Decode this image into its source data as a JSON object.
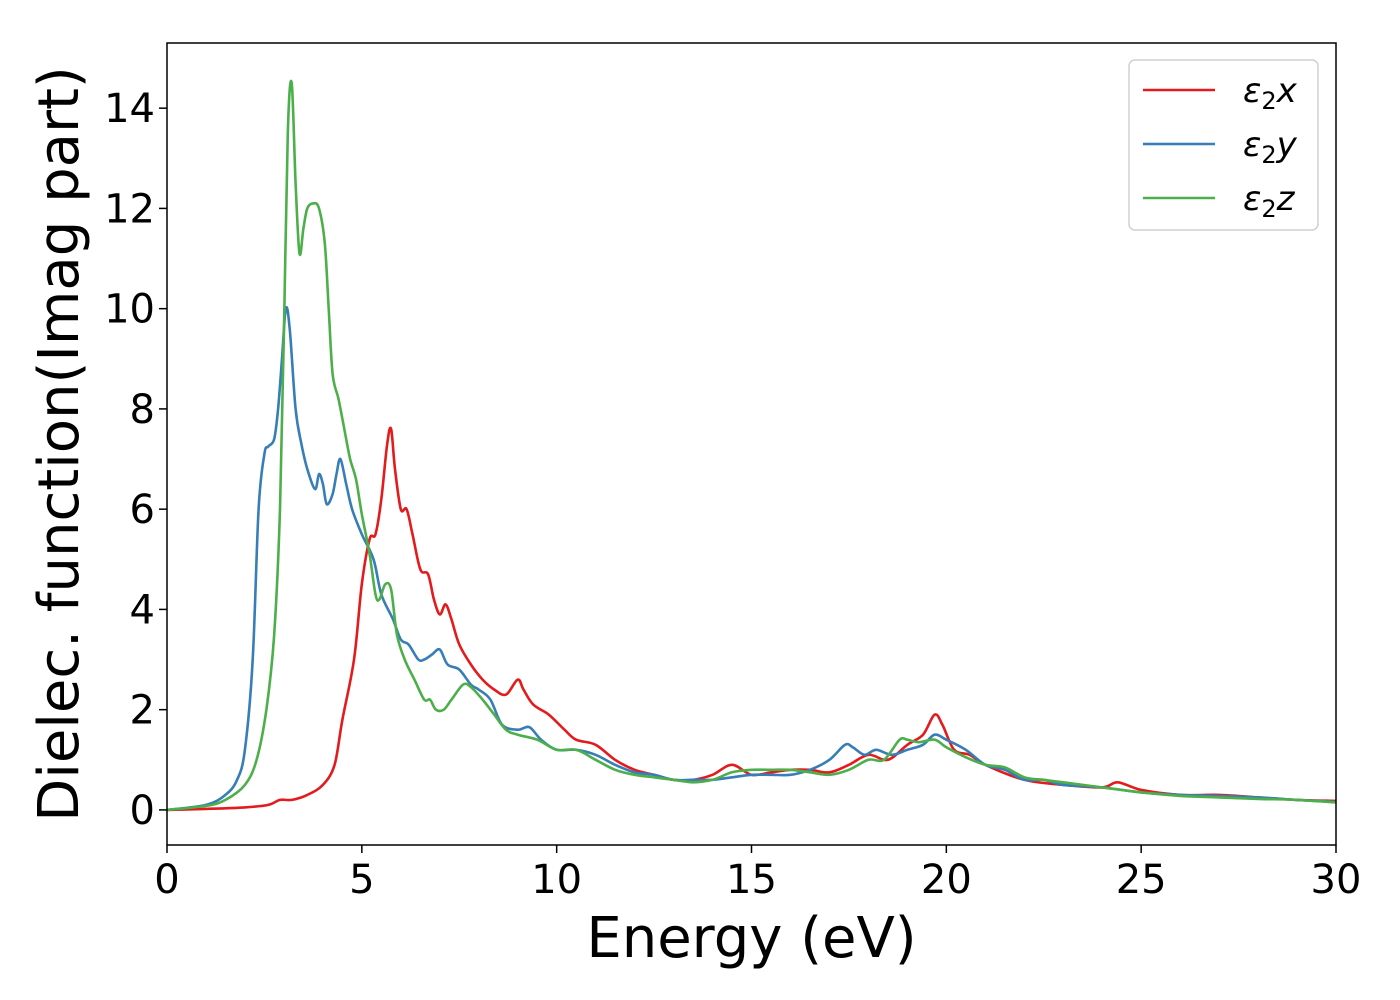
{
  "chart_data": {
    "type": "line",
    "title": "",
    "xlabel": "Energy (eV)",
    "ylabel": "Dielec. function(Imag part)",
    "xlim": [
      0,
      30
    ],
    "ylim": [
      -0.7,
      15.3
    ],
    "xticks": [
      0,
      5,
      10,
      15,
      20,
      25,
      30
    ],
    "yticks": [
      0,
      2,
      4,
      6,
      8,
      10,
      12,
      14
    ],
    "grid": false,
    "legend_position": "top-right",
    "series": [
      {
        "name": "ε2x",
        "legend": {
          "base": "ε",
          "sub": "2",
          "tail": "x"
        },
        "color": "#e41a1c",
        "x": [
          0,
          1,
          2,
          2.6,
          2.9,
          3.2,
          3.6,
          4.0,
          4.3,
          4.5,
          4.8,
          5.0,
          5.2,
          5.35,
          5.5,
          5.65,
          5.75,
          5.85,
          6.0,
          6.15,
          6.3,
          6.5,
          6.7,
          6.85,
          7.0,
          7.15,
          7.3,
          7.5,
          7.8,
          8.1,
          8.4,
          8.7,
          9.0,
          9.15,
          9.4,
          9.8,
          10.2,
          10.5,
          11.0,
          11.5,
          12.0,
          12.5,
          13.0,
          13.5,
          14.0,
          14.5,
          15.0,
          15.5,
          16.0,
          16.5,
          17.0,
          17.5,
          18.0,
          18.5,
          19.0,
          19.4,
          19.7,
          19.9,
          20.2,
          20.6,
          21.0,
          22.0,
          23.0,
          24.0,
          24.4,
          25.0,
          26.0,
          27.0,
          28.0,
          29.0,
          30.0
        ],
        "values": [
          0.0,
          0.02,
          0.05,
          0.1,
          0.2,
          0.2,
          0.3,
          0.5,
          0.9,
          1.8,
          3.0,
          4.5,
          5.4,
          5.5,
          6.2,
          7.3,
          7.6,
          6.8,
          6.0,
          6.0,
          5.5,
          4.8,
          4.7,
          4.2,
          3.9,
          4.1,
          3.8,
          3.3,
          2.9,
          2.6,
          2.4,
          2.3,
          2.6,
          2.4,
          2.1,
          1.9,
          1.6,
          1.4,
          1.3,
          1.0,
          0.8,
          0.7,
          0.6,
          0.6,
          0.7,
          0.9,
          0.7,
          0.75,
          0.8,
          0.8,
          0.75,
          0.9,
          1.1,
          1.0,
          1.3,
          1.5,
          1.9,
          1.7,
          1.2,
          1.1,
          0.9,
          0.6,
          0.5,
          0.45,
          0.55,
          0.4,
          0.3,
          0.3,
          0.25,
          0.2,
          0.18
        ]
      },
      {
        "name": "ε2y",
        "legend": {
          "base": "ε",
          "sub": "2",
          "tail": "y"
        },
        "color": "#377eb8",
        "x": [
          0,
          1,
          1.5,
          1.8,
          2.0,
          2.2,
          2.35,
          2.5,
          2.6,
          2.75,
          2.85,
          2.95,
          3.05,
          3.15,
          3.3,
          3.45,
          3.6,
          3.8,
          3.9,
          4.0,
          4.1,
          4.25,
          4.35,
          4.45,
          4.6,
          4.75,
          5.0,
          5.3,
          5.5,
          5.8,
          6.0,
          6.2,
          6.45,
          6.6,
          6.8,
          7.0,
          7.2,
          7.5,
          7.8,
          8.0,
          8.3,
          8.6,
          9.0,
          9.3,
          9.6,
          10.0,
          10.5,
          11.0,
          11.5,
          12.0,
          12.5,
          13.0,
          13.5,
          14.0,
          14.5,
          15.0,
          15.5,
          16.0,
          16.5,
          17.0,
          17.4,
          17.6,
          17.9,
          18.2,
          18.6,
          19.0,
          19.4,
          19.7,
          20.0,
          20.5,
          21.0,
          21.5,
          22.0,
          22.5,
          23.0,
          24.0,
          25.0,
          26.0,
          27.0,
          28.0,
          29.0,
          30.0
        ],
        "values": [
          0.0,
          0.1,
          0.3,
          0.6,
          1.2,
          3.0,
          6.0,
          7.1,
          7.25,
          7.4,
          8.0,
          9.0,
          10.0,
          9.6,
          8.0,
          7.3,
          6.8,
          6.4,
          6.7,
          6.5,
          6.1,
          6.3,
          6.7,
          7.0,
          6.5,
          6.0,
          5.5,
          5.0,
          4.3,
          3.8,
          3.4,
          3.3,
          3.0,
          3.0,
          3.1,
          3.2,
          2.9,
          2.8,
          2.5,
          2.4,
          2.2,
          1.7,
          1.6,
          1.65,
          1.4,
          1.2,
          1.2,
          1.1,
          0.9,
          0.75,
          0.7,
          0.6,
          0.6,
          0.6,
          0.65,
          0.7,
          0.7,
          0.7,
          0.8,
          1.0,
          1.3,
          1.25,
          1.1,
          1.2,
          1.1,
          1.2,
          1.3,
          1.5,
          1.4,
          1.2,
          0.9,
          0.8,
          0.6,
          0.6,
          0.5,
          0.45,
          0.35,
          0.3,
          0.28,
          0.25,
          0.2,
          0.16
        ]
      },
      {
        "name": "ε2z",
        "legend": {
          "base": "ε",
          "sub": "2",
          "tail": "z"
        },
        "color": "#4daf4a",
        "x": [
          0,
          1,
          1.5,
          2.0,
          2.3,
          2.55,
          2.75,
          2.9,
          3.0,
          3.1,
          3.2,
          3.3,
          3.4,
          3.5,
          3.6,
          3.75,
          3.9,
          4.05,
          4.15,
          4.25,
          4.4,
          4.55,
          4.7,
          4.85,
          5.0,
          5.2,
          5.35,
          5.45,
          5.6,
          5.75,
          5.9,
          6.1,
          6.35,
          6.6,
          6.75,
          6.9,
          7.1,
          7.3,
          7.6,
          7.8,
          8.1,
          8.4,
          8.7,
          9.0,
          9.5,
          10.0,
          10.5,
          11.0,
          11.5,
          12.0,
          12.5,
          13.0,
          13.5,
          14.0,
          14.5,
          15.0,
          15.5,
          16.0,
          16.5,
          17.0,
          17.5,
          18.0,
          18.4,
          18.8,
          19.0,
          19.3,
          19.7,
          20.0,
          20.5,
          21.0,
          21.5,
          22.0,
          22.5,
          23.0,
          24.0,
          25.0,
          26.0,
          27.0,
          28.0,
          29.0,
          30.0
        ],
        "values": [
          0.0,
          0.08,
          0.2,
          0.5,
          1.0,
          2.0,
          3.5,
          6.0,
          9.5,
          13.5,
          14.5,
          12.5,
          11.1,
          11.6,
          12.0,
          12.1,
          12.0,
          11.3,
          10.0,
          8.7,
          8.2,
          7.6,
          7.0,
          6.6,
          5.9,
          5.1,
          4.3,
          4.2,
          4.5,
          4.4,
          3.5,
          3.0,
          2.6,
          2.2,
          2.2,
          2.0,
          2.0,
          2.2,
          2.5,
          2.45,
          2.2,
          1.9,
          1.6,
          1.5,
          1.4,
          1.2,
          1.2,
          1.0,
          0.8,
          0.7,
          0.65,
          0.6,
          0.55,
          0.6,
          0.75,
          0.8,
          0.8,
          0.8,
          0.75,
          0.7,
          0.8,
          1.0,
          1.0,
          1.4,
          1.4,
          1.35,
          1.4,
          1.25,
          1.05,
          0.9,
          0.85,
          0.65,
          0.6,
          0.55,
          0.45,
          0.35,
          0.28,
          0.25,
          0.22,
          0.2,
          0.15
        ]
      }
    ]
  }
}
